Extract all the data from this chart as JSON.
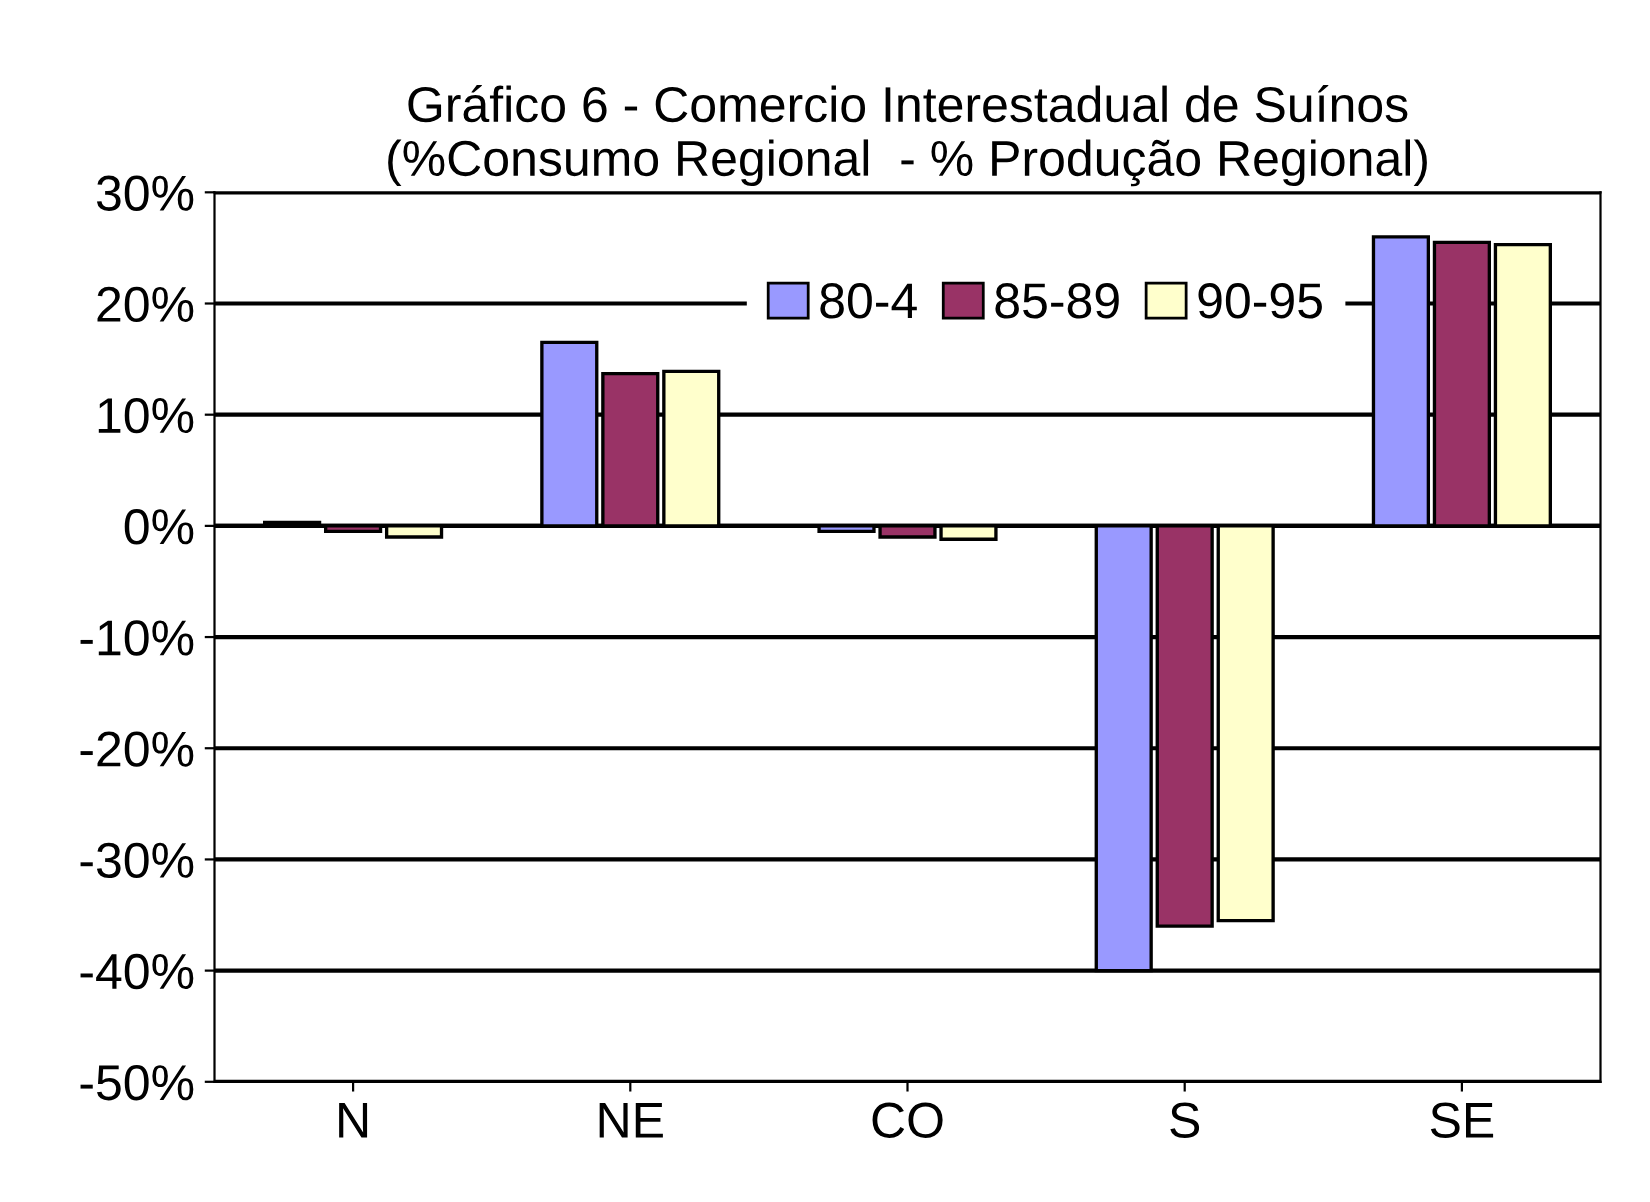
{
  "chart_data": {
    "type": "bar",
    "title": "Gráfico 6 - Comercio Interestadual de Suínos\n(%Consumo Regional  - % Produção Regional)",
    "categories": [
      "N",
      "NE",
      "CO",
      "S",
      "SE"
    ],
    "series": [
      {
        "name": "80-4",
        "color": "#9999ff",
        "values": [
          0.3,
          16.5,
          -0.5,
          -40,
          26
        ]
      },
      {
        "name": "85-89",
        "color": "#993366",
        "values": [
          -0.5,
          13.7,
          -1,
          -36,
          25.5
        ]
      },
      {
        "name": "90-95",
        "color": "#ffffcc",
        "values": [
          -1,
          13.9,
          -1.2,
          -35.5,
          25.3
        ]
      }
    ],
    "ylim": [
      -50,
      30
    ],
    "yticks": [
      {
        "value": -50,
        "label": "-50%"
      },
      {
        "value": -40,
        "label": "-40%"
      },
      {
        "value": -30,
        "label": "-30%"
      },
      {
        "value": -20,
        "label": "-20%"
      },
      {
        "value": -10,
        "label": "-10%"
      },
      {
        "value": 0,
        "label": "0%"
      },
      {
        "value": 10,
        "label": "10%"
      },
      {
        "value": 20,
        "label": "20%"
      },
      {
        "value": 30,
        "label": "30%"
      }
    ],
    "grid": "y",
    "legend": "top"
  }
}
